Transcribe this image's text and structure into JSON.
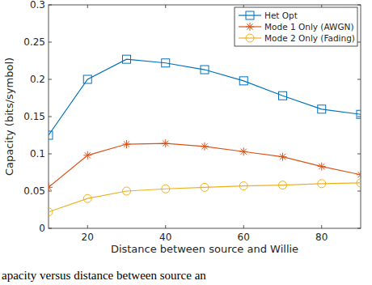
{
  "chart_data": {
    "type": "line",
    "x_label": "Distance between source and Willie",
    "y_label": "Capacity (bits/symbol)",
    "caption": "apacity versus distance between source an",
    "x": [
      10,
      20,
      30,
      40,
      50,
      60,
      70,
      80,
      90
    ],
    "series": [
      {
        "name": "Het Opt",
        "color": "#0072bd",
        "marker": "square",
        "values": [
          0.125,
          0.2,
          0.227,
          0.222,
          0.213,
          0.198,
          0.178,
          0.16,
          0.153
        ]
      },
      {
        "name": "Mode 1 Only (AWGN)",
        "color": "#d95319",
        "marker": "asterisk",
        "values": [
          0.055,
          0.098,
          0.113,
          0.114,
          0.11,
          0.103,
          0.096,
          0.083,
          0.072
        ]
      },
      {
        "name": "Mode 2 Only (Fading)",
        "color": "#edb120",
        "marker": "circle",
        "values": [
          0.022,
          0.04,
          0.05,
          0.053,
          0.055,
          0.057,
          0.058,
          0.06,
          0.061
        ]
      }
    ],
    "xlim": [
      10,
      90
    ],
    "xticks": [
      20,
      40,
      60,
      80
    ],
    "ylim": [
      0,
      0.3
    ],
    "yticks": [
      0,
      0.05,
      0.1,
      0.15,
      0.2,
      0.25,
      0.3
    ],
    "grid": false,
    "legend": "top-right"
  }
}
